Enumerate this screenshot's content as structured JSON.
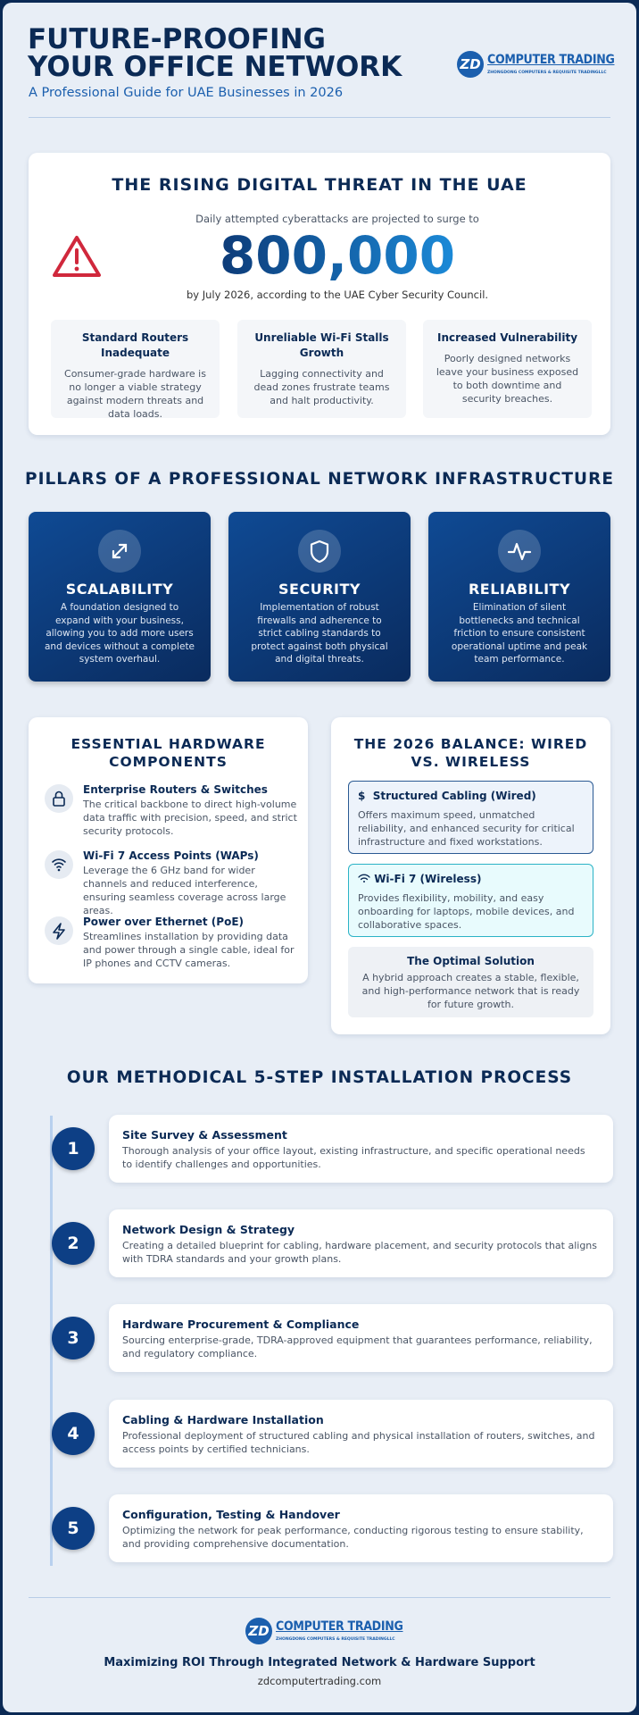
{
  "header": {
    "title": "FUTURE-PROOFING YOUR OFFICE NETWORK",
    "subtitle": "A Professional Guide for UAE Businesses in 2026"
  },
  "logo": {
    "mark": "ZD",
    "name": "COMPUTER TRADING",
    "tagline": "ZHONGDONG COMPUTERS & REQUISITE TRADINGLLC"
  },
  "threat": {
    "title": "THE RISING DIGITAL THREAT IN THE UAE",
    "lead": "Daily attempted cyberattacks are projected to surge to",
    "figure": "800,000",
    "source": "by July 2026, according to the UAE Cyber Security Council.",
    "issues": [
      {
        "title": "Standard Routers Inadequate",
        "text": "Consumer-grade hardware is no longer a viable strategy against modern threats and data loads."
      },
      {
        "title": "Unreliable Wi-Fi Stalls Growth",
        "text": "Lagging connectivity and dead zones frustrate teams and halt productivity."
      },
      {
        "title": "Increased Vulnerability",
        "text": "Poorly designed networks leave your business exposed to both downtime and security breaches."
      }
    ]
  },
  "pillars": {
    "title": "PILLARS OF A PROFESSIONAL NETWORK INFRASTRUCTURE",
    "items": [
      {
        "title": "SCALABILITY",
        "text": "A foundation designed to expand with your business, allowing you to add more users and devices without a complete system overhaul."
      },
      {
        "title": "SECURITY",
        "text": "Implementation of robust firewalls and adherence to strict cabling standards to protect against both physical and digital threats."
      },
      {
        "title": "RELIABILITY",
        "text": "Elimination of silent bottlenecks and technical friction to ensure consistent operational uptime and peak team performance."
      }
    ]
  },
  "hardware": {
    "title": "ESSENTIAL HARDWARE COMPONENTS",
    "items": [
      {
        "title": "Enterprise Routers & Switches",
        "text": "The critical backbone to direct high-volume data traffic with precision, speed, and strict security protocols."
      },
      {
        "title": "Wi-Fi 7 Access Points (WAPs)",
        "text": "Leverage the 6 GHz band for wider channels and reduced interference, ensuring seamless coverage across large areas."
      },
      {
        "title": "Power over Ethernet (PoE)",
        "text": "Streamlines installation by providing data and power through a single cable, ideal for IP phones and CCTV cameras."
      }
    ]
  },
  "balance": {
    "title": "THE 2026 BALANCE: WIRED VS. WIRELESS",
    "wired": {
      "title": "Structured Cabling (Wired)",
      "text": "Offers maximum speed, unmatched reliability, and enhanced security for critical infrastructure and fixed workstations."
    },
    "wireless": {
      "title": "Wi-Fi 7 (Wireless)",
      "text": "Provides flexibility, mobility, and easy onboarding for laptops, mobile devices, and collaborative spaces."
    },
    "solution": {
      "title": "The Optimal Solution",
      "text": "A hybrid approach creates a stable, flexible, and high-performance network that is ready for future growth."
    }
  },
  "process": {
    "title": "OUR METHODICAL 5-STEP INSTALLATION PROCESS",
    "steps": [
      {
        "number": "1",
        "title": "Site Survey & Assessment",
        "text": "Thorough analysis of your office layout, existing infrastructure, and specific operational needs to identify challenges and opportunities."
      },
      {
        "number": "2",
        "title": "Network Design & Strategy",
        "text": "Creating a detailed blueprint for cabling, hardware placement, and security protocols that aligns with TDRA standards and your growth plans."
      },
      {
        "number": "3",
        "title": "Hardware Procurement & Compliance",
        "text": "Sourcing enterprise-grade, TDRA-approved equipment that guarantees performance, reliability, and regulatory compliance."
      },
      {
        "number": "4",
        "title": "Cabling & Hardware Installation",
        "text": "Professional deployment of structured cabling and physical installation of routers, switches, and access points by certified technicians."
      },
      {
        "number": "5",
        "title": "Configuration, Testing & Handover",
        "text": "Optimizing the network for peak performance, conducting rigorous testing to ensure stability, and providing comprehensive documentation."
      }
    ]
  },
  "footer": {
    "tagline": "Maximizing ROI Through Integrated Network & Hardware Support",
    "url": "zdcomputertrading.com"
  }
}
